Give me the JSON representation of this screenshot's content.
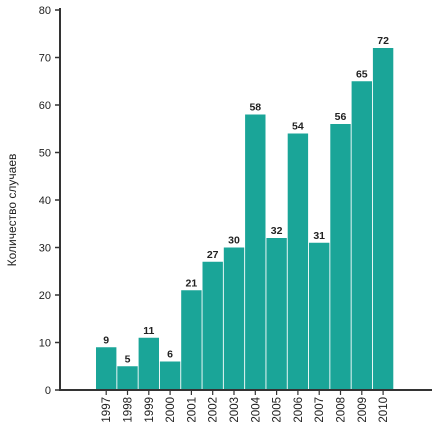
{
  "chart_data": {
    "type": "bar",
    "ylabel": "Количество случаев",
    "xlabel": "",
    "ylim": [
      0,
      80
    ],
    "yticks": [
      0,
      10,
      20,
      30,
      40,
      50,
      60,
      70,
      80
    ],
    "grid": false,
    "bar_color": "#1aa598",
    "categories": [
      "1997",
      "1998",
      "1999",
      "2000",
      "2001",
      "2002",
      "2003",
      "2004",
      "2005",
      "2006",
      "2007",
      "2008",
      "2009",
      "2010"
    ],
    "values": [
      9,
      5,
      11,
      6,
      21,
      27,
      30,
      58,
      32,
      54,
      31,
      56,
      65,
      72
    ]
  }
}
